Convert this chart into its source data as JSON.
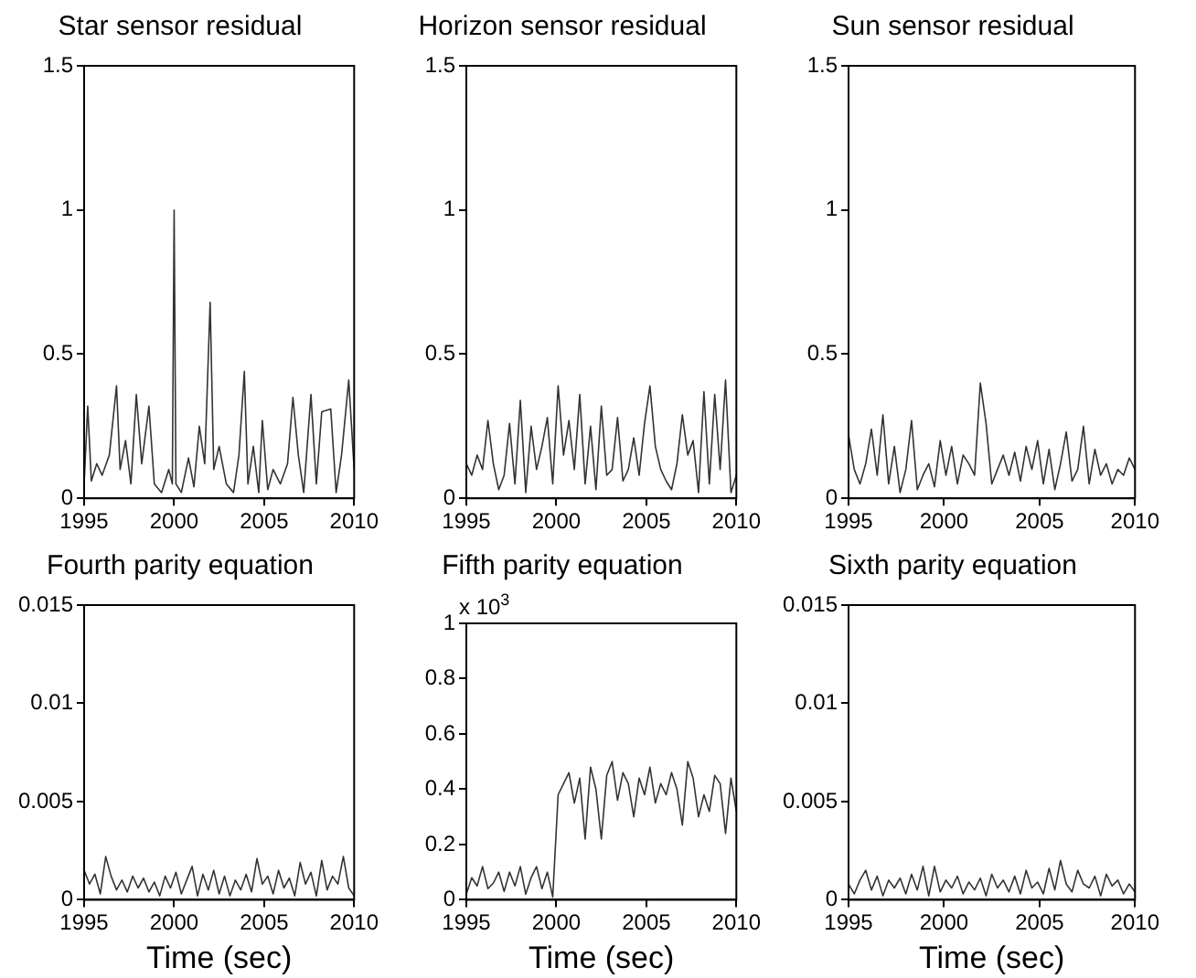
{
  "chart_data": [
    {
      "type": "line",
      "title": "Star sensor residual",
      "x": [
        1995,
        1995.2,
        1995.4,
        1995.7,
        1996,
        1996.4,
        1996.8,
        1997,
        1997.3,
        1997.6,
        1997.9,
        1998.2,
        1998.6,
        1998.9,
        1999.3,
        1999.7,
        1999.9,
        2000,
        2000.1,
        2000.4,
        2000.8,
        2001.1,
        2001.4,
        2001.7,
        2002,
        2002.2,
        2002.5,
        2002.9,
        2003.3,
        2003.6,
        2003.9,
        2004.1,
        2004.4,
        2004.7,
        2004.9,
        2005.2,
        2005.5,
        2005.9,
        2006.3,
        2006.6,
        2006.9,
        2007.2,
        2007.6,
        2007.9,
        2008.2,
        2008.7,
        2009,
        2009.3,
        2009.7,
        2010
      ],
      "series": [
        {
          "color": "#333333",
          "values": [
            0.05,
            0.32,
            0.06,
            0.12,
            0.08,
            0.15,
            0.39,
            0.1,
            0.2,
            0.05,
            0.36,
            0.12,
            0.32,
            0.05,
            0.02,
            0.1,
            0.05,
            1.0,
            0.05,
            0.02,
            0.14,
            0.04,
            0.25,
            0.12,
            0.68,
            0.1,
            0.18,
            0.05,
            0.02,
            0.15,
            0.44,
            0.05,
            0.18,
            0.02,
            0.27,
            0.03,
            0.1,
            0.05,
            0.12,
            0.35,
            0.15,
            0.02,
            0.36,
            0.05,
            0.3,
            0.31,
            0.02,
            0.15,
            0.41,
            0.1
          ]
        }
      ],
      "xlim": [
        1995,
        2010
      ],
      "xticks": [
        1995,
        2000,
        2005,
        2010
      ],
      "ylim": [
        0,
        1.5
      ],
      "yticks": [
        0,
        0.5,
        1,
        1.5
      ],
      "grid": false,
      "legend": false,
      "marker": "none",
      "line_style": "solid"
    },
    {
      "type": "line",
      "title": "Horizon sensor residual",
      "x": [
        1995,
        1995.3,
        1995.6,
        1995.9,
        1996.2,
        1996.5,
        1996.8,
        1997.1,
        1997.4,
        1997.7,
        1998,
        1998.3,
        1998.6,
        1998.9,
        1999.2,
        1999.5,
        1999.8,
        2000.1,
        2000.4,
        2000.7,
        2001,
        2001.3,
        2001.6,
        2001.9,
        2002.2,
        2002.5,
        2002.8,
        2003.1,
        2003.4,
        2003.7,
        2004,
        2004.3,
        2004.6,
        2004.9,
        2005.2,
        2005.5,
        2005.8,
        2006.1,
        2006.4,
        2006.7,
        2007,
        2007.3,
        2007.6,
        2007.9,
        2008.2,
        2008.5,
        2008.8,
        2009.1,
        2009.4,
        2009.7,
        2010
      ],
      "series": [
        {
          "color": "#333333",
          "values": [
            0.12,
            0.08,
            0.15,
            0.1,
            0.27,
            0.12,
            0.03,
            0.08,
            0.26,
            0.05,
            0.34,
            0.02,
            0.25,
            0.1,
            0.18,
            0.28,
            0.05,
            0.39,
            0.15,
            0.27,
            0.1,
            0.36,
            0.05,
            0.25,
            0.03,
            0.32,
            0.08,
            0.1,
            0.28,
            0.06,
            0.1,
            0.21,
            0.08,
            0.26,
            0.39,
            0.18,
            0.1,
            0.06,
            0.03,
            0.12,
            0.29,
            0.15,
            0.2,
            0.02,
            0.37,
            0.05,
            0.36,
            0.1,
            0.41,
            0.02,
            0.08
          ]
        }
      ],
      "xlim": [
        1995,
        2010
      ],
      "xticks": [
        1995,
        2000,
        2005,
        2010
      ],
      "ylim": [
        0,
        1.5
      ],
      "yticks": [
        0,
        0.5,
        1,
        1.5
      ],
      "grid": false,
      "legend": false,
      "marker": "none",
      "line_style": "solid"
    },
    {
      "type": "line",
      "title": "Sun sensor residual",
      "x": [
        1995,
        1995.3,
        1995.6,
        1995.9,
        1996.2,
        1996.5,
        1996.8,
        1997.1,
        1997.4,
        1997.7,
        1998,
        1998.3,
        1998.6,
        1998.9,
        1999.2,
        1999.5,
        1999.8,
        2000.1,
        2000.4,
        2000.7,
        2001,
        2001.3,
        2001.6,
        2001.9,
        2002.2,
        2002.5,
        2002.8,
        2003.1,
        2003.4,
        2003.7,
        2004,
        2004.3,
        2004.6,
        2004.9,
        2005.2,
        2005.5,
        2005.8,
        2006.1,
        2006.4,
        2006.7,
        2007,
        2007.3,
        2007.6,
        2007.9,
        2008.2,
        2008.5,
        2008.8,
        2009.1,
        2009.4,
        2009.7,
        2010
      ],
      "series": [
        {
          "color": "#333333",
          "values": [
            0.22,
            0.1,
            0.05,
            0.12,
            0.24,
            0.08,
            0.29,
            0.05,
            0.18,
            0.02,
            0.1,
            0.27,
            0.03,
            0.08,
            0.12,
            0.04,
            0.2,
            0.08,
            0.18,
            0.05,
            0.15,
            0.12,
            0.08,
            0.4,
            0.26,
            0.05,
            0.1,
            0.15,
            0.08,
            0.16,
            0.06,
            0.18,
            0.1,
            0.2,
            0.05,
            0.17,
            0.03,
            0.12,
            0.23,
            0.06,
            0.1,
            0.25,
            0.05,
            0.17,
            0.08,
            0.12,
            0.05,
            0.1,
            0.08,
            0.14,
            0.1
          ]
        }
      ],
      "xlim": [
        1995,
        2010
      ],
      "xticks": [
        1995,
        2000,
        2005,
        2010
      ],
      "ylim": [
        0,
        1.5
      ],
      "yticks": [
        0,
        0.5,
        1,
        1.5
      ],
      "grid": false,
      "legend": false,
      "marker": "none",
      "line_style": "solid"
    },
    {
      "type": "line",
      "title": "Fourth parity equation",
      "xlabel": "Time (sec)",
      "x": [
        1995,
        1995.3,
        1995.6,
        1995.9,
        1996.2,
        1996.5,
        1996.8,
        1997.1,
        1997.4,
        1997.7,
        1998,
        1998.3,
        1998.6,
        1998.9,
        1999.2,
        1999.5,
        1999.8,
        2000.1,
        2000.4,
        2000.7,
        2001,
        2001.3,
        2001.6,
        2001.9,
        2002.2,
        2002.5,
        2002.8,
        2003.1,
        2003.4,
        2003.7,
        2004,
        2004.3,
        2004.6,
        2004.9,
        2005.2,
        2005.5,
        2005.8,
        2006.1,
        2006.4,
        2006.7,
        2007,
        2007.3,
        2007.6,
        2007.9,
        2008.2,
        2008.5,
        2008.8,
        2009.1,
        2009.4,
        2009.7,
        2010
      ],
      "series": [
        {
          "color": "#333333",
          "values": [
            0.0015,
            0.0008,
            0.0013,
            0.0003,
            0.0022,
            0.0012,
            0.0005,
            0.001,
            0.0004,
            0.0012,
            0.0006,
            0.0011,
            0.0004,
            0.0009,
            0.0002,
            0.0012,
            0.0006,
            0.0014,
            0.0003,
            0.001,
            0.0017,
            0.0002,
            0.0013,
            0.0005,
            0.0015,
            0.0003,
            0.0012,
            0.0002,
            0.001,
            0.0005,
            0.0013,
            0.0004,
            0.0021,
            0.0008,
            0.0012,
            0.0003,
            0.0015,
            0.0006,
            0.0011,
            0.0002,
            0.0019,
            0.0008,
            0.0014,
            0.0002,
            0.002,
            0.0005,
            0.0012,
            0.0008,
            0.0022,
            0.0006,
            0.0002
          ]
        }
      ],
      "xlim": [
        1995,
        2010
      ],
      "xticks": [
        1995,
        2000,
        2005,
        2010
      ],
      "ylim": [
        0,
        0.015
      ],
      "yticks": [
        0,
        0.005,
        0.01,
        0.015
      ],
      "grid": false,
      "legend": false,
      "marker": "none",
      "line_style": "solid"
    },
    {
      "type": "line",
      "title": "Fifth parity equation",
      "xlabel": "Time (sec)",
      "annotations": [
        "x 10$^{3}$"
      ],
      "x": [
        1995,
        1995.3,
        1995.6,
        1995.9,
        1996.2,
        1996.5,
        1996.8,
        1997.1,
        1997.4,
        1997.7,
        1998,
        1998.3,
        1998.6,
        1998.9,
        1999.2,
        1999.5,
        1999.8,
        2000.1,
        2000.4,
        2000.7,
        2001,
        2001.3,
        2001.6,
        2001.9,
        2002.2,
        2002.5,
        2002.8,
        2003.1,
        2003.4,
        2003.7,
        2004,
        2004.3,
        2004.6,
        2004.9,
        2005.2,
        2005.5,
        2005.8,
        2006.1,
        2006.4,
        2006.7,
        2007,
        2007.3,
        2007.6,
        2007.9,
        2008.2,
        2008.5,
        2008.8,
        2009.1,
        2009.4,
        2009.7,
        2010
      ],
      "series": [
        {
          "color": "#333333",
          "values": [
            0.02,
            0.08,
            0.05,
            0.12,
            0.04,
            0.06,
            0.1,
            0.03,
            0.1,
            0.05,
            0.12,
            0.02,
            0.08,
            0.12,
            0.04,
            0.1,
            0.01,
            0.38,
            0.42,
            0.46,
            0.35,
            0.44,
            0.22,
            0.48,
            0.4,
            0.22,
            0.45,
            0.5,
            0.36,
            0.46,
            0.42,
            0.3,
            0.44,
            0.38,
            0.48,
            0.35,
            0.42,
            0.38,
            0.46,
            0.4,
            0.27,
            0.5,
            0.44,
            0.3,
            0.38,
            0.32,
            0.45,
            0.42,
            0.24,
            0.44,
            0.32
          ]
        }
      ],
      "xlim": [
        1995,
        2010
      ],
      "xticks": [
        1995,
        2000,
        2005,
        2010
      ],
      "ylim": [
        0,
        1
      ],
      "yticks": [
        0,
        0.2,
        0.4,
        0.6,
        0.8,
        1
      ],
      "grid": false,
      "legend": false,
      "marker": "none",
      "line_style": "solid"
    },
    {
      "type": "line",
      "title": "Sixth parity equation",
      "xlabel": "Time (sec)",
      "x": [
        1995,
        1995.3,
        1995.6,
        1995.9,
        1996.2,
        1996.5,
        1996.8,
        1997.1,
        1997.4,
        1997.7,
        1998,
        1998.3,
        1998.6,
        1998.9,
        1999.2,
        1999.5,
        1999.8,
        2000.1,
        2000.4,
        2000.7,
        2001,
        2001.3,
        2001.6,
        2001.9,
        2002.2,
        2002.5,
        2002.8,
        2003.1,
        2003.4,
        2003.7,
        2004,
        2004.3,
        2004.6,
        2004.9,
        2005.2,
        2005.5,
        2005.8,
        2006.1,
        2006.4,
        2006.7,
        2007,
        2007.3,
        2007.6,
        2007.9,
        2008.2,
        2008.5,
        2008.8,
        2009.1,
        2009.4,
        2009.7,
        2010
      ],
      "series": [
        {
          "color": "#333333",
          "values": [
            0.0008,
            0.0003,
            0.001,
            0.0015,
            0.0005,
            0.0012,
            0.0002,
            0.001,
            0.0006,
            0.0011,
            0.0003,
            0.0013,
            0.0005,
            0.0017,
            0.0002,
            0.0017,
            0.0004,
            0.001,
            0.0006,
            0.0012,
            0.0003,
            0.0009,
            0.0005,
            0.0011,
            0.0002,
            0.0013,
            0.0006,
            0.001,
            0.0004,
            0.0012,
            0.0003,
            0.0015,
            0.0006,
            0.0009,
            0.0003,
            0.0016,
            0.0005,
            0.002,
            0.0008,
            0.0004,
            0.0015,
            0.0008,
            0.0006,
            0.0012,
            0.0002,
            0.0013,
            0.0007,
            0.001,
            0.0003,
            0.0008,
            0.0004
          ]
        }
      ],
      "xlim": [
        1995,
        2010
      ],
      "xticks": [
        1995,
        2000,
        2005,
        2010
      ],
      "ylim": [
        0,
        0.015
      ],
      "yticks": [
        0,
        0.005,
        0.01,
        0.015
      ],
      "grid": false,
      "legend": false,
      "marker": "none",
      "line_style": "solid"
    }
  ]
}
